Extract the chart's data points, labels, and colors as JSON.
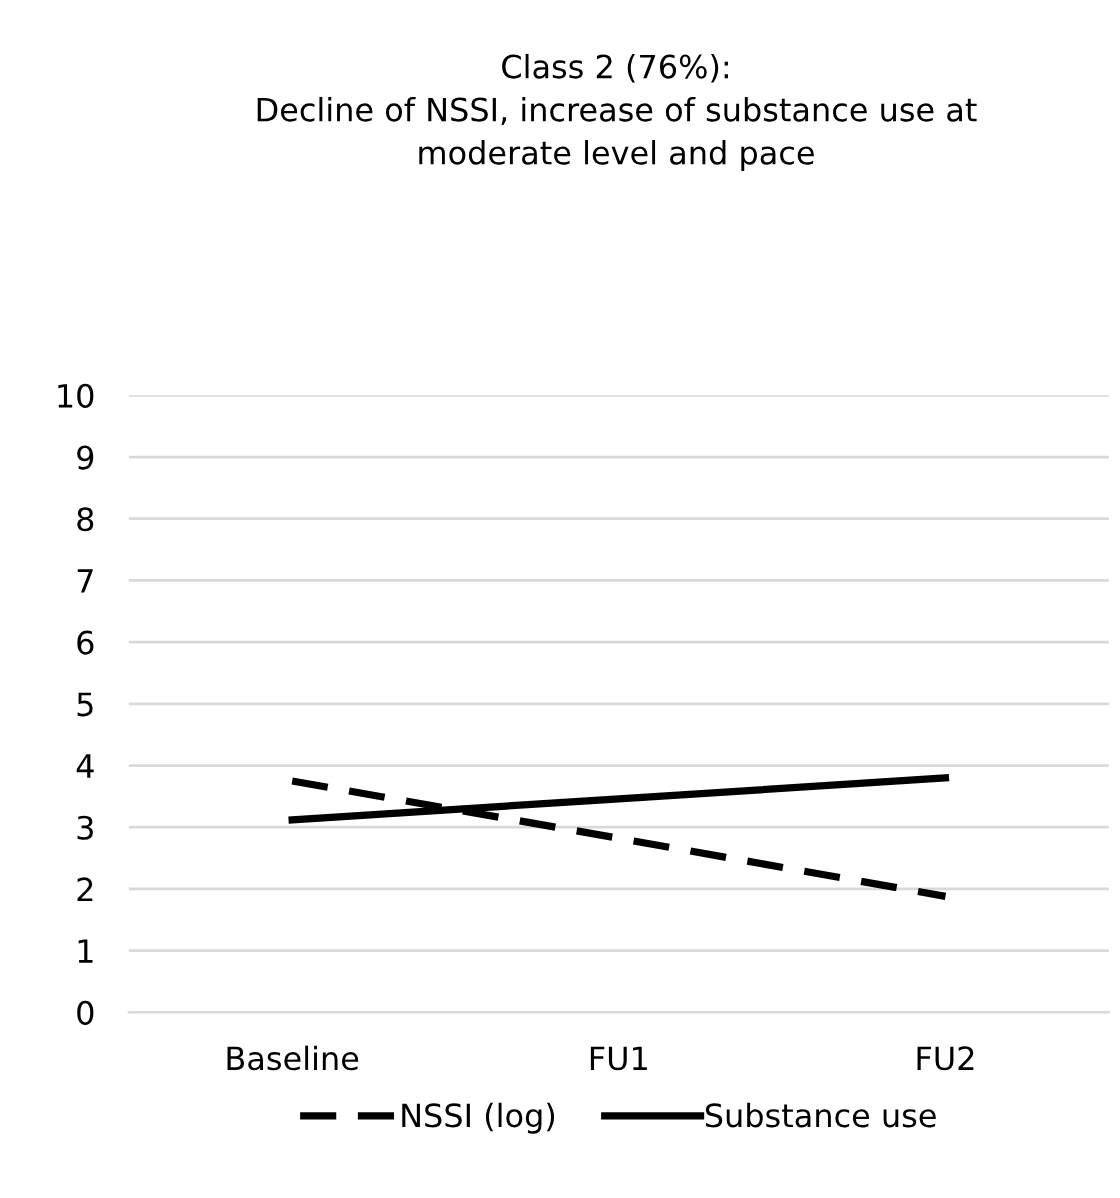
{
  "chart_data": {
    "type": "line",
    "title": "Class 2 (76%):\nDecline of NSSI, increase of substance use at\nmoderate level and pace",
    "categories": [
      "Baseline",
      "FU1",
      "FU2"
    ],
    "series": [
      {
        "name": "NSSI (log)",
        "color": "#000000",
        "line_style": "dashed",
        "values": [
          3.75,
          2.82,
          1.88
        ]
      },
      {
        "name": "Substance use",
        "color": "#000000",
        "line_style": "solid",
        "values": [
          3.12,
          3.46,
          3.8
        ]
      }
    ],
    "ylim": [
      0,
      10
    ],
    "yticks": [
      0,
      1,
      2,
      3,
      4,
      5,
      6,
      7,
      8,
      9,
      10
    ],
    "grid": "y",
    "legend": "bottom",
    "marker": "none"
  }
}
